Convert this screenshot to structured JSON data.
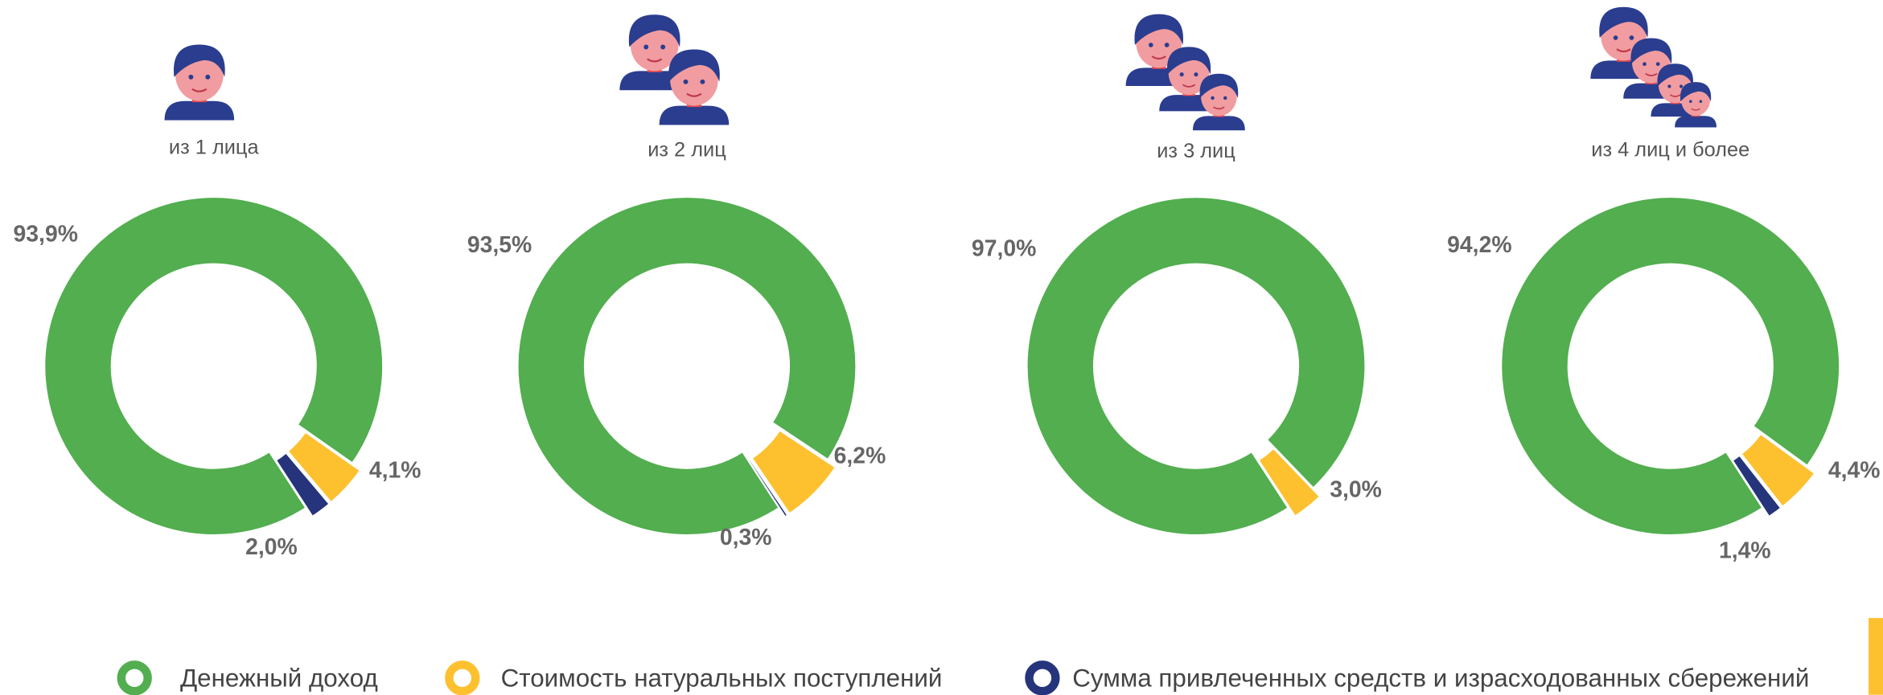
{
  "chart_data": [
    {
      "type": "pie",
      "title": "из 1 лица",
      "categories": [
        "Денежный доход",
        "Стоимость натуральных поступлений",
        "Сумма привлеченных средств и израсходованных сбережений"
      ],
      "values": [
        93.9,
        4.1,
        2.0
      ],
      "value_labels": [
        "93,9%",
        "4,1%",
        "2,0%"
      ],
      "colors": [
        "#52ae4f",
        "#fdc02f",
        "#26347c"
      ]
    },
    {
      "type": "pie",
      "title": "из 2 лиц",
      "categories": [
        "Денежный доход",
        "Стоимость натуральных поступлений",
        "Сумма привлеченных средств и израсходованных сбережений"
      ],
      "values": [
        93.5,
        6.2,
        0.3
      ],
      "value_labels": [
        "93,5%",
        "6,2%",
        "0,3%"
      ],
      "colors": [
        "#52ae4f",
        "#fdc02f",
        "#26347c"
      ]
    },
    {
      "type": "pie",
      "title": "из 3 лиц",
      "categories": [
        "Денежный доход",
        "Стоимость натуральных поступлений"
      ],
      "values": [
        97.0,
        3.0
      ],
      "value_labels": [
        "97,0%",
        "3,0%"
      ],
      "colors": [
        "#52ae4f",
        "#fdc02f"
      ]
    },
    {
      "type": "pie",
      "title": "из 4 лиц и более",
      "categories": [
        "Денежный доход",
        "Стоимость натуральных поступлений",
        "Сумма привлеченных средств и израсходованных сбережений"
      ],
      "values": [
        94.2,
        4.4,
        1.4
      ],
      "value_labels": [
        "94,2%",
        "4,4%",
        "1,4%"
      ],
      "colors": [
        "#52ae4f",
        "#fdc02f",
        "#26347c"
      ]
    }
  ]
}
